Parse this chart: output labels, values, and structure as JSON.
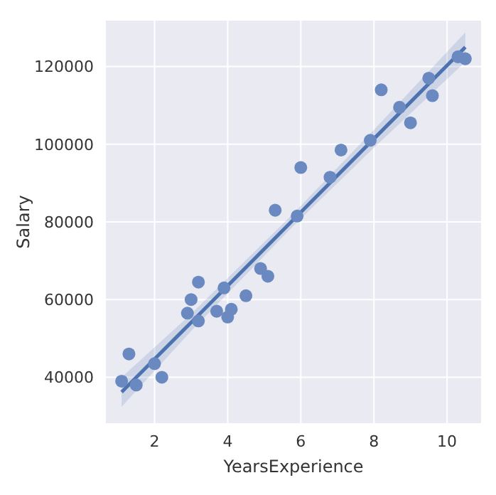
{
  "chart_data": {
    "type": "scatter",
    "xlabel": "YearsExperience",
    "ylabel": "Salary",
    "xlim": [
      0.65,
      10.95
    ],
    "ylim": [
      28000,
      132000
    ],
    "xticks": [
      2,
      4,
      6,
      8,
      10
    ],
    "yticks": [
      40000,
      60000,
      80000,
      100000,
      120000
    ],
    "grid": true,
    "legend": false,
    "series": [
      {
        "type": "scatter",
        "color": "#6a89c0",
        "marker": "circle",
        "x": [
          1.1,
          1.3,
          1.5,
          2.0,
          2.2,
          2.9,
          3.0,
          3.2,
          3.2,
          3.7,
          3.9,
          4.0,
          4.1,
          4.5,
          4.9,
          5.1,
          5.3,
          5.9,
          6.0,
          6.8,
          7.1,
          7.9,
          8.2,
          8.7,
          9.0,
          9.5,
          9.6,
          10.3,
          10.5
        ],
        "values": [
          39000,
          46000,
          38000,
          43500,
          40000,
          56500,
          60000,
          54500,
          64500,
          57000,
          63000,
          55500,
          57500,
          61000,
          68000,
          66000,
          83000,
          81500,
          94000,
          91500,
          98500,
          101000,
          114000,
          109500,
          105500,
          117000,
          112500,
          122500,
          122000
        ]
      },
      {
        "type": "line",
        "color": "#4c72b0",
        "marker": "none",
        "line_style": "solid",
        "x": [
          1.1,
          3,
          5.8,
          8,
          10.5
        ],
        "values": [
          36200,
          54100,
          80600,
          101400,
          125000
        ],
        "lower": [
          32400,
          51900,
          79000,
          99100,
          121200
        ],
        "upper": [
          40000,
          56300,
          82200,
          103700,
          128800
        ]
      }
    ]
  }
}
